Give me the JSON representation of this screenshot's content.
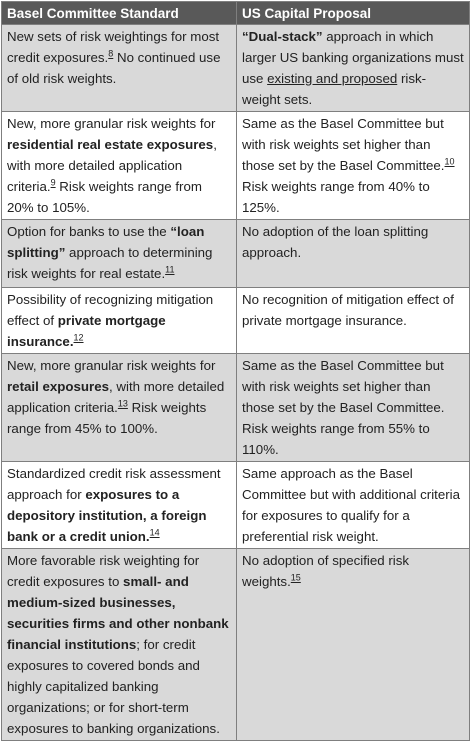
{
  "table": {
    "headers": [
      "Basel Committee Standard",
      "US Capital Proposal"
    ],
    "rows": [
      [
        [
          "New sets of risk weightings for most credit exposures.",
          "8",
          " No continued use of old risk weights."
        ],
        [
          "“Dual-stack”",
          " approach in which larger US banking organizations must use ",
          "existing and proposed",
          " risk-weight sets."
        ]
      ],
      [
        [
          "New, more granular risk weights for ",
          "residential real estate exposures",
          ", with more detailed application criteria.",
          "9",
          " Risk weights range from 20% to 105%."
        ],
        [
          "Same as the Basel Committee but with risk weights set higher than those set by the Basel Committee.",
          "10",
          " Risk weights range from 40% to 125%."
        ]
      ],
      [
        [
          "Option for banks to use the ",
          "“loan splitting”",
          " approach to determining risk weights for real estate.",
          "11"
        ],
        [
          "No adoption of the loan splitting approach."
        ]
      ],
      [
        [
          "Possibility of recognizing mitigation effect of ",
          "private mortgage insurance.",
          "12"
        ],
        [
          "No recognition of mitigation effect of private mortgage insurance."
        ]
      ],
      [
        [
          "New, more granular risk weights for ",
          "retail exposures",
          ", with more detailed application criteria.",
          "13",
          " Risk weights range from 45% to 100%."
        ],
        [
          "Same as the Basel Committee but with risk weights set higher than those set by the Basel Committee. Risk weights range from 55% to 110%."
        ]
      ],
      [
        [
          "Standardized credit risk assessment approach for ",
          "exposures to a depository institution, a foreign bank or a credit union.",
          "14"
        ],
        [
          "Same approach as the Basel Committee but with additional criteria for exposures to qualify for a preferential risk weight."
        ]
      ],
      [
        [
          "More favorable risk weighting for credit exposures to ",
          "small- and medium-sized businesses, securities firms and other nonbank financial institutions",
          "; for credit exposures to covered bonds and highly capitalized banking organizations; or for short-term exposures to banking organizations."
        ],
        [
          "No adoption of specified risk weights.",
          "15"
        ]
      ]
    ]
  }
}
